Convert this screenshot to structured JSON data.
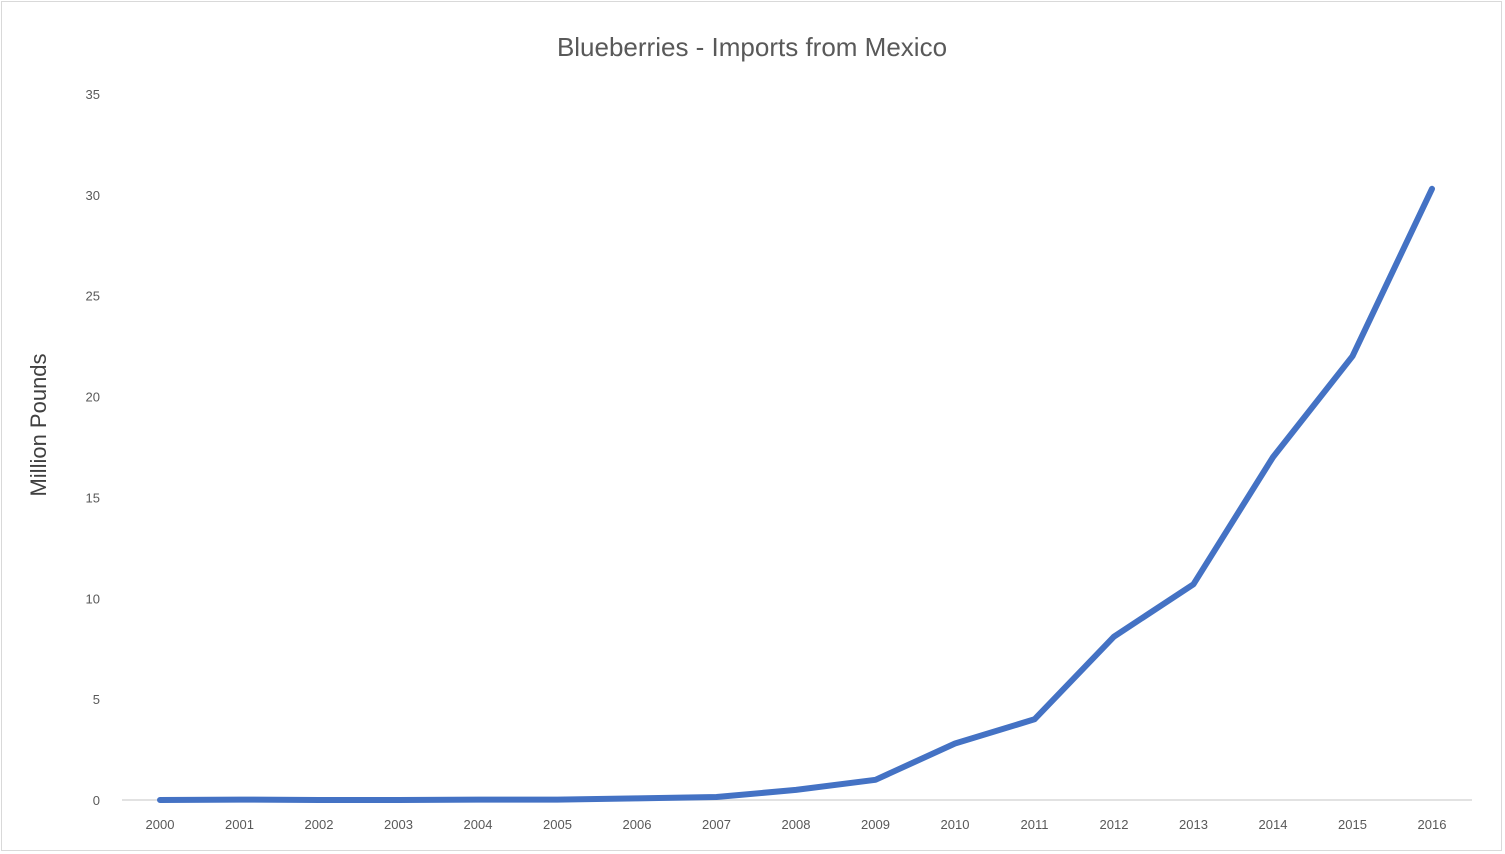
{
  "chart_data": {
    "type": "line",
    "title": "Blueberries - Imports from Mexico",
    "xlabel": "",
    "ylabel": "Million Pounds",
    "x": [
      "2000",
      "2001",
      "2002",
      "2003",
      "2004",
      "2005",
      "2006",
      "2007",
      "2008",
      "2009",
      "2010",
      "2011",
      "2012",
      "2013",
      "2014",
      "2015",
      "2016"
    ],
    "series": [
      {
        "values": [
          0,
          0.02,
          0,
          0,
          0.02,
          0.02,
          0.08,
          0.15,
          0.5,
          1.0,
          2.8,
          4.0,
          8.1,
          10.7,
          17.0,
          22.0,
          30.3
        ],
        "color": "#4472c4"
      }
    ],
    "ylim": [
      0,
      35
    ],
    "yticks": [
      "0",
      "5",
      "10",
      "15",
      "20",
      "25",
      "30",
      "35"
    ],
    "grid": false,
    "legend": "none"
  }
}
